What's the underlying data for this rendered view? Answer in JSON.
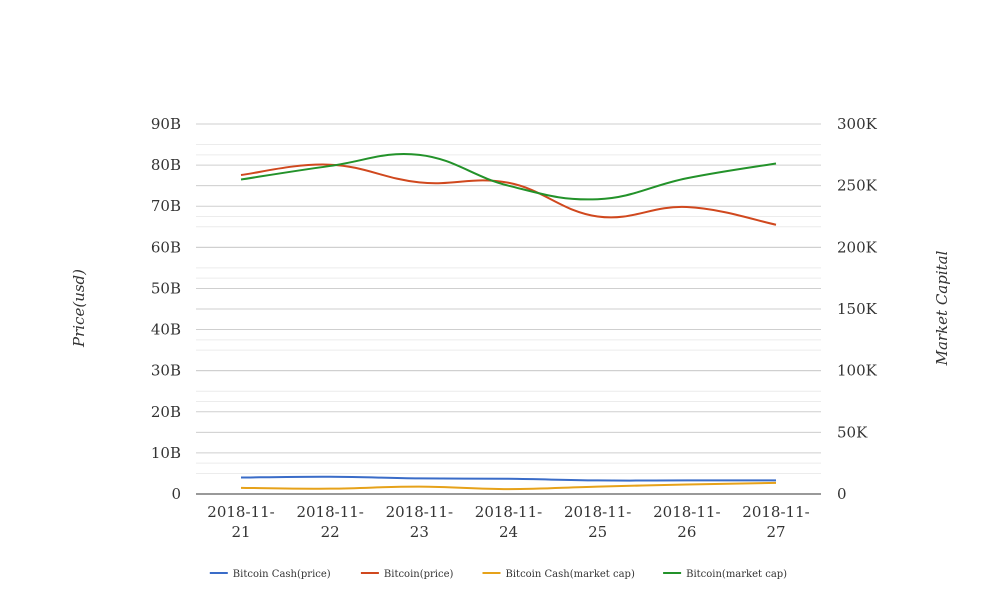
{
  "chart_data": {
    "type": "line",
    "categories": [
      "2018-11-21",
      "2018-11-22",
      "2018-11-23",
      "2018-11-24",
      "2018-11-25",
      "2018-11-26",
      "2018-11-27"
    ],
    "category_label_lines": [
      [
        "2018-11-",
        "21"
      ],
      [
        "2018-11-",
        "22"
      ],
      [
        "2018-11-",
        "23"
      ],
      [
        "2018-11-",
        "24"
      ],
      [
        "2018-11-",
        "25"
      ],
      [
        "2018-11-",
        "26"
      ],
      [
        "2018-11-",
        "27"
      ]
    ],
    "ylabel": "Price(usd)",
    "y2label": "Market Capital",
    "ylim": [
      0,
      90000000000
    ],
    "y2lim": [
      0,
      300000
    ],
    "y_ticks": [
      0,
      10000000000,
      20000000000,
      30000000000,
      40000000000,
      50000000000,
      60000000000,
      70000000000,
      80000000000,
      90000000000
    ],
    "y_tick_labels": [
      "0",
      "10B",
      "20B",
      "30B",
      "40B",
      "50B",
      "60B",
      "70B",
      "80B",
      "90B"
    ],
    "y2_ticks": [
      0,
      50000,
      100000,
      150000,
      200000,
      250000,
      300000
    ],
    "y2_tick_labels": [
      "0",
      "50K",
      "100K",
      "150K",
      "200K",
      "250K",
      "300K"
    ],
    "grid": true,
    "legend_position": "bottom",
    "series": [
      {
        "name": "Bitcoin Cash(price)",
        "axis": "left",
        "color": "#3a6cc8",
        "values": [
          4000000000,
          4200000000,
          3800000000,
          3700000000,
          3300000000,
          3300000000,
          3300000000
        ]
      },
      {
        "name": "Bitcoin(price)",
        "axis": "left",
        "color": "#d0481e",
        "values": [
          77600000000,
          80100000000,
          75800000000,
          75700000000,
          67500000000,
          69800000000,
          65500000000
        ]
      },
      {
        "name": "Bitcoin Cash(market cap)",
        "axis": "left",
        "color": "#e6a21a",
        "values": [
          1500000000,
          1300000000,
          1800000000,
          1200000000,
          1800000000,
          2300000000,
          2700000000
        ]
      },
      {
        "name": "Bitcoin(market cap)",
        "axis": "right",
        "color": "#23922a",
        "values": [
          255000,
          266000,
          275000,
          250000,
          239000,
          256000,
          268000
        ]
      }
    ]
  }
}
